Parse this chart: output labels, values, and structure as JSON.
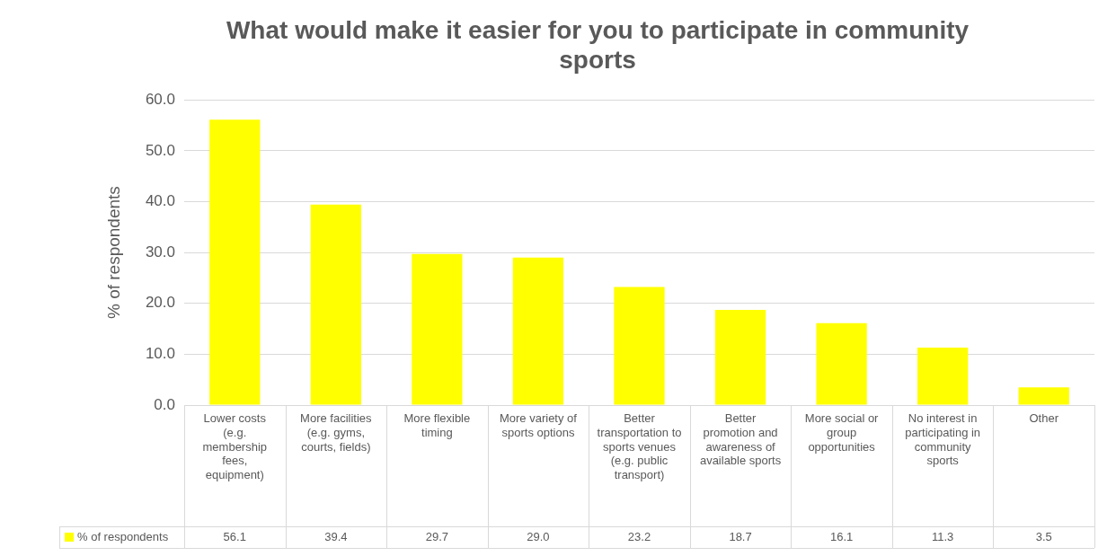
{
  "chart_data": {
    "type": "bar",
    "title": "What would make it easier for you to participate in community sports",
    "ylabel": "% of respondents",
    "categories": [
      "Lower costs (e.g. membership fees, equipment)",
      "More facilities (e.g. gyms, courts, fields)",
      "More flexible timing",
      "More variety of sports options",
      "Better transportation to sports venues (e.g. public transport)",
      "Better promotion and awareness of available sports",
      "More social or group opportunities",
      "No interest in participating in community sports",
      "Other"
    ],
    "series": [
      {
        "name": "% of respondents",
        "color": "#ffff00",
        "values": [
          56.1,
          39.4,
          29.7,
          29.0,
          23.2,
          18.7,
          16.1,
          11.3,
          3.5
        ],
        "value_labels": [
          "56.1",
          "39.4",
          "29.7",
          "29.0",
          "23.2",
          "18.7",
          "16.1",
          "11.3",
          "3.5"
        ]
      }
    ],
    "ylim": [
      0,
      60
    ],
    "yticks": [
      {
        "value": 0,
        "label": "0.0"
      },
      {
        "value": 10,
        "label": "10.0"
      },
      {
        "value": 20,
        "label": "20.0"
      },
      {
        "value": 30,
        "label": "30.0"
      },
      {
        "value": 40,
        "label": "40.0"
      },
      {
        "value": 50,
        "label": "50.0"
      },
      {
        "value": 60,
        "label": "60.0"
      }
    ],
    "grid": "y"
  }
}
